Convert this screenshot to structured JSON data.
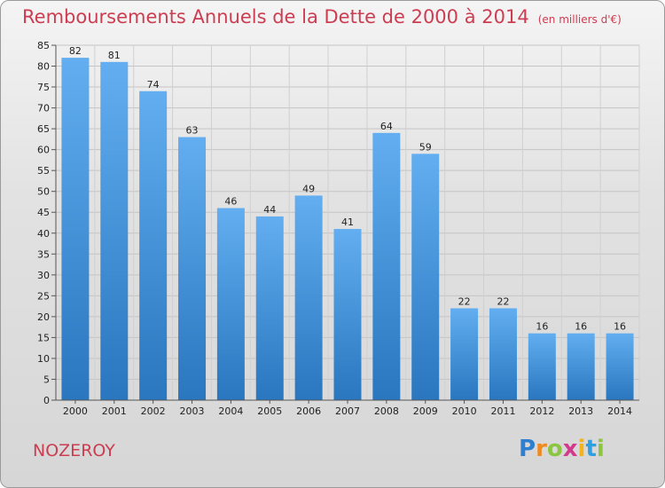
{
  "header": {
    "title": "Remboursements Annuels de la Dette de 2000 à 2014",
    "unit": "(en milliers d'€)"
  },
  "footer": {
    "town": "NOZEROY",
    "brand_letters": [
      {
        "ch": "P",
        "color": "#2e7fd0"
      },
      {
        "ch": "r",
        "color": "#f08a1e"
      },
      {
        "ch": "o",
        "color": "#8cc540"
      },
      {
        "ch": "x",
        "color": "#d23a8c"
      },
      {
        "ch": "i",
        "color": "#f3b41b"
      },
      {
        "ch": "t",
        "color": "#2e9fe0"
      },
      {
        "ch": "i",
        "color": "#8cc540"
      }
    ]
  },
  "colors": {
    "bar_top": "#62aef0",
    "bar_bottom": "#2a76bf",
    "title": "#cc3d52"
  },
  "chart_data": {
    "type": "bar",
    "title": "Remboursements Annuels de la Dette de 2000 à 2014",
    "subtitle": "(en milliers d'€)",
    "xlabel": "",
    "ylabel": "",
    "categories": [
      "2000",
      "2001",
      "2002",
      "2003",
      "2004",
      "2005",
      "2006",
      "2007",
      "2008",
      "2009",
      "2010",
      "2011",
      "2012",
      "2013",
      "2014"
    ],
    "values": [
      82,
      81,
      74,
      63,
      46,
      44,
      49,
      41,
      64,
      59,
      22,
      22,
      16,
      16,
      16
    ],
    "ylim": [
      0,
      85
    ],
    "yticks": [
      0,
      5,
      10,
      15,
      20,
      25,
      30,
      35,
      40,
      45,
      50,
      55,
      60,
      65,
      70,
      75,
      80,
      85
    ],
    "grid": true,
    "data_labels": true
  }
}
